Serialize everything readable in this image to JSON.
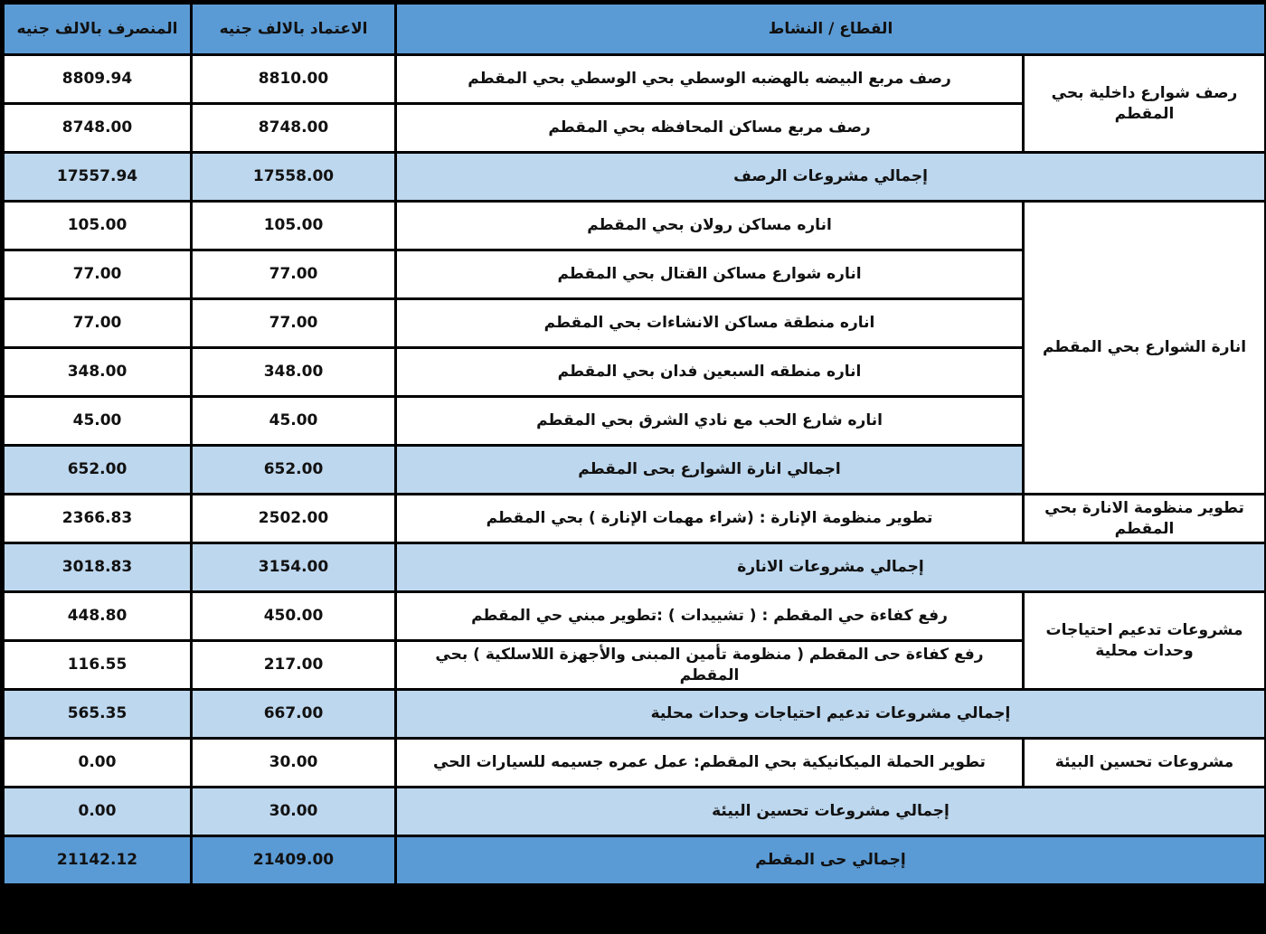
{
  "headers": {
    "spent": "المنصرف بالالف جنيه",
    "approved": "الاعتماد بالالف جنيه",
    "activity": "القطاع / النشاط"
  },
  "sections": [
    {
      "groups": [
        {
          "sector": "رصف شوارع داخلية بحي المقطم",
          "items": [
            {
              "activity": "رصف مربع البيضه بالهضبه الوسطي بحي الوسطي بحي المقطم",
              "approved": "8810.00",
              "spent": "8809.94"
            },
            {
              "activity": "رصف مربع مساكن المحافظه بحي المقطم",
              "approved": "8748.00",
              "spent": "8748.00"
            }
          ]
        }
      ],
      "total": {
        "label": "إجمالي مشروعات الرصف",
        "approved": "17558.00",
        "spent": "17557.94"
      }
    },
    {
      "groups": [
        {
          "sector": "انارة الشوارع بحي المقطم",
          "items": [
            {
              "activity": "اناره مساكن رولان بحي المقطم",
              "approved": "105.00",
              "spent": "105.00"
            },
            {
              "activity": "اناره شوارع مساكن القتال بحي المقطم",
              "approved": "77.00",
              "spent": "77.00"
            },
            {
              "activity": "اناره منطقة مساكن الانشاءات بحي المقطم",
              "approved": "77.00",
              "spent": "77.00"
            },
            {
              "activity": "اناره منطقه السبعين فدان بحي المقطم",
              "approved": "348.00",
              "spent": "348.00"
            },
            {
              "activity": "اناره شارع الحب مع نادي الشرق بحي المقطم",
              "approved": "45.00",
              "spent": "45.00"
            }
          ],
          "subtotal": {
            "label": "اجمالي انارة الشوارع بحى المقطم",
            "approved": "652.00",
            "spent": "652.00"
          }
        },
        {
          "sector": "تطوير منظومة الانارة بحي المقطم",
          "items": [
            {
              "activity": "تطوير منظومة الإنارة : (شراء مهمات الإنارة ) بحي المقطم",
              "approved": "2502.00",
              "spent": "2366.83"
            }
          ]
        }
      ],
      "total": {
        "label": "إجمالي مشروعات الانارة",
        "approved": "3154.00",
        "spent": "3018.83"
      }
    },
    {
      "groups": [
        {
          "sector": "مشروعات تدعيم احتياجات وحدات محلية",
          "items": [
            {
              "activity": "رفع كفاءة حي المقطم : ( تشييدات ) :تطوير مبني حي المقطم",
              "approved": "450.00",
              "spent": "448.80"
            },
            {
              "activity": "رفع كفاءة حى المقطم ( منظومة تأمين المبنى والأجهزة اللاسلكية ) بحي المقطم",
              "approved": "217.00",
              "spent": "116.55"
            }
          ]
        }
      ],
      "total": {
        "label": "إجمالي مشروعات تدعيم احتياجات وحدات محلية",
        "approved": "667.00",
        "spent": "565.35"
      }
    },
    {
      "groups": [
        {
          "sector": "مشروعات تحسين البيئة",
          "items": [
            {
              "activity": "تطوير الحملة الميكانيكية بحي المقطم: عمل عمره جسيمه للسيارات الحي",
              "approved": "30.00",
              "spent": "0.00"
            }
          ]
        }
      ],
      "total": {
        "label": "إجمالي مشروعات تحسين البيئة",
        "approved": "30.00",
        "spent": "0.00"
      }
    }
  ],
  "grand_total": {
    "label": "إجمالي حى المقطم",
    "approved": "21409.00",
    "spent": "21142.12"
  },
  "colors": {
    "header": "#5b9bd5",
    "subtotal": "#bdd7ee",
    "grand_total": "#5b9bd5"
  }
}
